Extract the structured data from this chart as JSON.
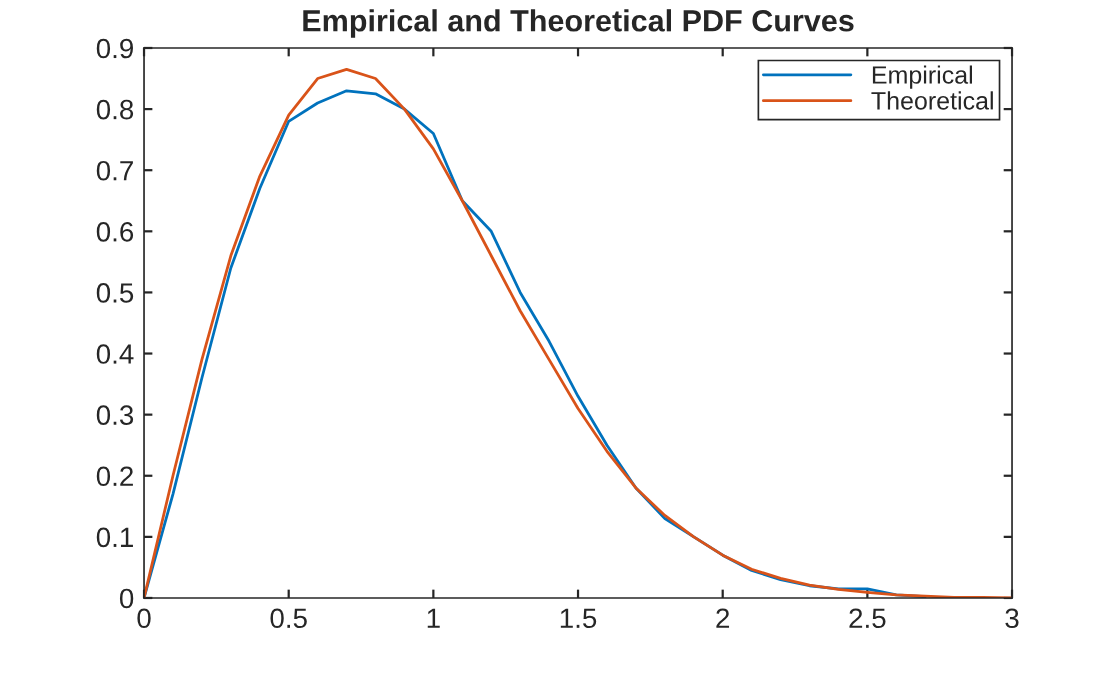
{
  "chart_data": {
    "type": "line",
    "title": "Empirical and Theoretical PDF Curves",
    "x": [
      0,
      0.1,
      0.2,
      0.3,
      0.4,
      0.5,
      0.6,
      0.7,
      0.8,
      0.9,
      1.0,
      1.1,
      1.2,
      1.3,
      1.4,
      1.5,
      1.6,
      1.7,
      1.8,
      1.9,
      2.0,
      2.1,
      2.2,
      2.3,
      2.4,
      2.5,
      2.6,
      2.7,
      2.8,
      2.9,
      3.0
    ],
    "series": [
      {
        "name": "Empirical",
        "color": "#0072bd",
        "values": [
          0,
          0.17,
          0.36,
          0.54,
          0.67,
          0.78,
          0.81,
          0.83,
          0.825,
          0.8,
          0.76,
          0.65,
          0.6,
          0.5,
          0.42,
          0.33,
          0.25,
          0.18,
          0.13,
          0.1,
          0.07,
          0.045,
          0.03,
          0.02,
          0.015,
          0.015,
          0.005,
          0.002,
          null,
          null,
          null
        ]
      },
      {
        "name": "Theoretical",
        "color": "#d95319",
        "values": [
          0,
          0.2,
          0.39,
          0.56,
          0.69,
          0.79,
          0.85,
          0.865,
          0.85,
          0.8,
          0.735,
          0.65,
          0.56,
          0.47,
          0.39,
          0.31,
          0.24,
          0.18,
          0.135,
          0.1,
          0.07,
          0.047,
          0.032,
          0.021,
          0.014,
          0.009,
          0.005,
          0.003,
          0.001,
          0.001,
          0
        ]
      }
    ],
    "xlim": [
      0,
      3
    ],
    "xticks": [
      0,
      0.5,
      1,
      1.5,
      2,
      2.5,
      3
    ],
    "ylim": [
      0,
      0.9
    ],
    "yticks": [
      0,
      0.1,
      0.2,
      0.3,
      0.4,
      0.5,
      0.6,
      0.7,
      0.8,
      0.9
    ],
    "grid": false,
    "legend": "top right",
    "marker": "none",
    "line_style": "solid"
  }
}
